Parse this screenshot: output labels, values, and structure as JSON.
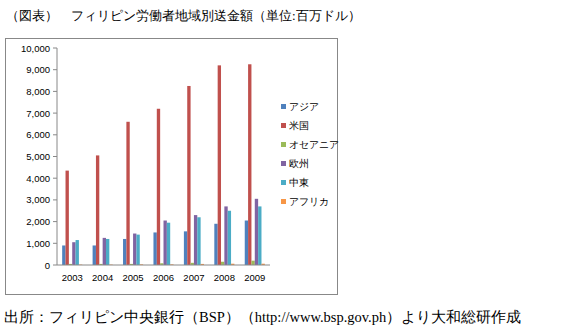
{
  "chart_data": {
    "type": "bar",
    "title": "（図表）　フィリピン労働者地域別送金額（単位:百万ドル）",
    "source": "出所：フィリピン中央銀行（BSP）（http://www.bsp.gov.ph）より大和総研作成",
    "categories": [
      "2003",
      "2004",
      "2005",
      "2006",
      "2007",
      "2008",
      "2009"
    ],
    "series": [
      {
        "name": "アジア",
        "color": "#4f81bd",
        "values": [
          900,
          900,
          1200,
          1500,
          1550,
          1900,
          2050
        ]
      },
      {
        "name": "米国",
        "color": "#c0504d",
        "values": [
          4350,
          5050,
          6600,
          7200,
          8250,
          9200,
          9250
        ]
      },
      {
        "name": "オセアニア",
        "color": "#9bbb59",
        "values": [
          50,
          50,
          50,
          80,
          100,
          150,
          200
        ]
      },
      {
        "name": "欧州",
        "color": "#8064a2",
        "values": [
          1050,
          1250,
          1450,
          2050,
          2300,
          2700,
          3050
        ]
      },
      {
        "name": "中東",
        "color": "#4bacc6",
        "values": [
          1150,
          1200,
          1400,
          1950,
          2200,
          2500,
          2700
        ]
      },
      {
        "name": "アフリカ",
        "color": "#f79646",
        "values": [
          20,
          20,
          30,
          30,
          50,
          60,
          60
        ]
      }
    ],
    "ylim": [
      0,
      10000
    ],
    "yticks": [
      0,
      {
        "value": 1000,
        "label": "1,000"
      },
      {
        "value": 2000,
        "label": "2,000"
      },
      {
        "value": 3000,
        "label": "3,000"
      },
      {
        "value": 4000,
        "label": "4,000"
      },
      {
        "value": 5000,
        "label": "5,000"
      },
      {
        "value": 6000,
        "label": "6,000"
      },
      {
        "value": 7000,
        "label": "7,000"
      },
      {
        "value": 8000,
        "label": "8,000"
      },
      {
        "value": 9000,
        "label": "9,000"
      },
      {
        "value": 10000,
        "label": "10,000"
      }
    ],
    "grid": false,
    "legend": "right"
  }
}
